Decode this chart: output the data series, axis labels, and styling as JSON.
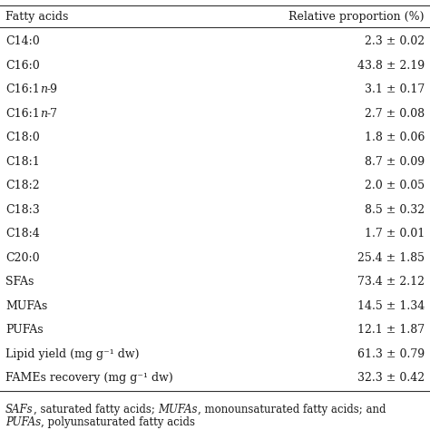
{
  "col1_header": "Fatty acids",
  "col2_header": "Relative proportion (%)",
  "rows": [
    [
      "C14:0",
      "2.3 ± 0.02"
    ],
    [
      "C16:0",
      "43.8 ± 2.19"
    ],
    [
      "C16:1n-9",
      "3.1 ± 0.17"
    ],
    [
      "C16:1n-7",
      "2.7 ± 0.08"
    ],
    [
      "C18:0",
      "1.8 ± 0.06"
    ],
    [
      "C18:1",
      "8.7 ± 0.09"
    ],
    [
      "C18:2",
      "2.0 ± 0.05"
    ],
    [
      "C18:3",
      "8.5 ± 0.32"
    ],
    [
      "C18:4",
      "1.7 ± 0.01"
    ],
    [
      "C20:0",
      "25.4 ± 1.85"
    ],
    [
      "SFAs",
      "73.4 ± 2.12"
    ],
    [
      "MUFAs",
      "14.5 ± 1.34"
    ],
    [
      "PUFAs",
      "12.1 ± 1.87"
    ],
    [
      "Lipid yield (mg g⁻¹ dw)",
      "61.3 ± 0.79"
    ],
    [
      "FAMEs recovery (mg g⁻¹ dw)",
      "32.3 ± 0.42"
    ]
  ],
  "background_color": "#ffffff",
  "text_color": "#1a1a1a",
  "fontsize": 9.0,
  "line_color": "#555555"
}
